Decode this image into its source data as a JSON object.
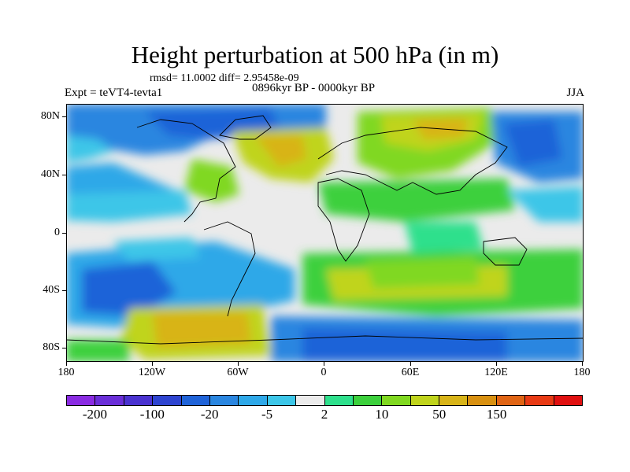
{
  "title": "Height perturbation at 500 hPa (in m)",
  "stats": "rmsd= 11.0002 diff= 2.95458e-09",
  "experiment": "Expt = teVT4-tevta1",
  "period": "0896kyr BP - 0000kyr BP",
  "season": "JJA",
  "axes": {
    "y_ticks": [
      "80N",
      "40N",
      "0",
      "40S",
      "80S"
    ],
    "x_ticks": [
      "180",
      "120W",
      "60W",
      "0",
      "60E",
      "120E",
      "180"
    ]
  },
  "colorbar": {
    "colors": [
      "#8a2be2",
      "#6a2ed8",
      "#4a32d0",
      "#2e44d0",
      "#1f63d8",
      "#2a86e0",
      "#2ea8e8",
      "#3cc6e8",
      "#ebebeb",
      "#2ee08c",
      "#3cd03c",
      "#80d820",
      "#c0d41c",
      "#d8b418",
      "#d89010",
      "#e06414",
      "#e83a14",
      "#e01010"
    ],
    "labels": [
      "-200",
      "-100",
      "-20",
      "-5",
      "2",
      "10",
      "50",
      "150"
    ]
  }
}
